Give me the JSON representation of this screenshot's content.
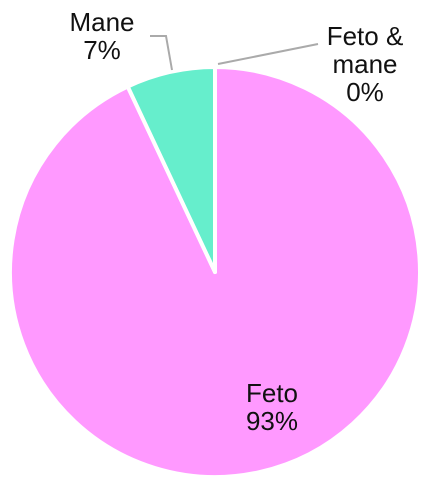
{
  "chart_data": {
    "type": "pie",
    "categories": [
      "Feto",
      "Mane",
      "Feto & mane"
    ],
    "values": [
      93,
      7,
      0
    ],
    "value_labels": [
      "93%",
      "7%",
      "0%"
    ],
    "colors": [
      "#ff99ff",
      "#66eecc",
      "#ffcc66"
    ]
  }
}
